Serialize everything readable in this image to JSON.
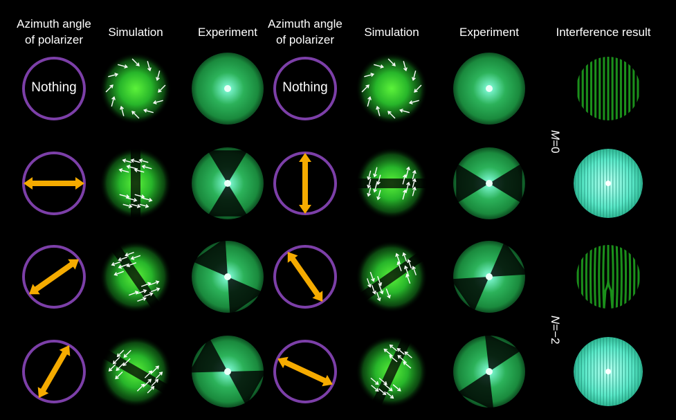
{
  "headers": {
    "azimuth_line1": "Azimuth angle",
    "azimuth_line2": "of polarizer",
    "simulation": "Simulation",
    "experiment": "Experiment",
    "interference": "Interference result"
  },
  "nothing_label": "Nothing",
  "side_labels": {
    "m_var": "M",
    "m_val": "=0",
    "n_var": "N",
    "n_val": "=−2"
  },
  "polarizer_angles_deg": {
    "left": [
      null,
      0,
      35,
      60
    ],
    "right": [
      null,
      90,
      125,
      155
    ]
  },
  "colors": {
    "background": "#000000",
    "polarizer_ring": "#7c3fa8",
    "polarizer_arrow": "#f5ab00",
    "beam_green": "#2ec24a",
    "beam_core": "#9ffff0",
    "vector_arrow": "#ffffff",
    "fringe_dark_green": "#1b8f1b",
    "fringe_cyan": "#5ef5d0"
  }
}
